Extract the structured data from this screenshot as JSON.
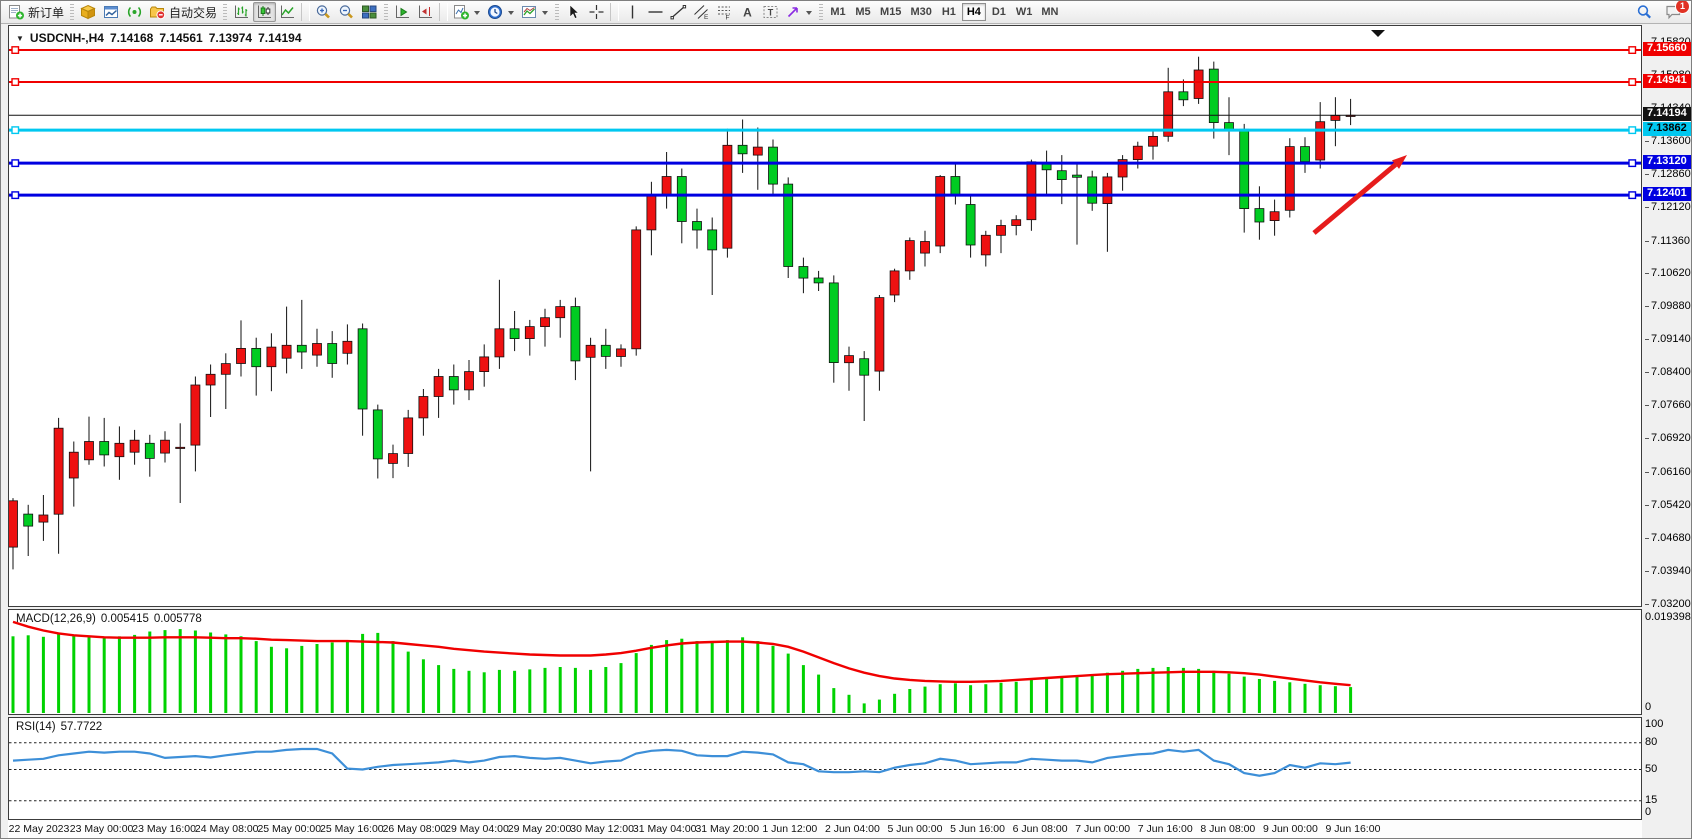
{
  "toolbar": {
    "new_order_label": "新订单",
    "auto_trading_label": "自动交易",
    "icons": [
      "new-order-icon",
      "market-watch-icon",
      "data-window-icon",
      "signals-icon",
      "auto-trading-icon",
      "bar-chart-icon",
      "candlestick-chart-icon",
      "line-chart-icon",
      "zoom-in-icon",
      "zoom-out-icon",
      "tile-windows-icon",
      "auto-scroll-icon",
      "chart-shift-icon",
      "indicators-icon",
      "periods-icon",
      "templates-icon",
      "cursor-icon",
      "crosshair-icon",
      "vertical-line-icon",
      "horizontal-line-icon",
      "trendline-icon",
      "channel-icon",
      "fibonacci-icon",
      "text-icon",
      "text-label-icon",
      "arrows-icon",
      "search-icon",
      "chat-icon"
    ],
    "timeframes": [
      "M1",
      "M5",
      "M15",
      "M30",
      "H1",
      "H4",
      "D1",
      "W1",
      "MN"
    ],
    "active_timeframe": "H4",
    "notification_count": "1"
  },
  "chart_header": {
    "symbol_period": "USDCNH-,H4",
    "open": "7.14168",
    "high": "7.14561",
    "low": "7.13974",
    "close": "7.14194"
  },
  "price_axis": {
    "ticks": [
      "7.15820",
      "7.15080",
      "7.14340",
      "7.13600",
      "7.12860",
      "7.12120",
      "7.11360",
      "7.10620",
      "7.09880",
      "7.09140",
      "7.08400",
      "7.07660",
      "7.06920",
      "7.06160",
      "7.05420",
      "7.04680",
      "7.03940",
      "7.03200"
    ]
  },
  "date_axis": {
    "labels": [
      "22 May 2023",
      "23 May 00:00",
      "23 May 16:00",
      "24 May 08:00",
      "25 May 00:00",
      "25 May 16:00",
      "26 May 08:00",
      "29 May 04:00",
      "29 May 20:00",
      "30 May 12:00",
      "31 May 04:00",
      "31 May 20:00",
      "1 Jun 12:00",
      "2 Jun 04:00",
      "5 Jun 00:00",
      "5 Jun 16:00",
      "6 Jun 08:00",
      "7 Jun 00:00",
      "7 Jun 16:00",
      "8 Jun 08:00",
      "9 Jun 00:00",
      "9 Jun 16:00"
    ]
  },
  "indicators": {
    "macd": {
      "label": "MACD(12,26,9)",
      "value_main": "0.005415",
      "value_signal": "0.005778",
      "scale_max": "0.019398",
      "scale_min": "0"
    },
    "rsi": {
      "label": "RSI(14)",
      "value": "57.7722",
      "scale_labels": [
        "100",
        "80",
        "50",
        "15",
        "0"
      ],
      "level_lines": [
        80,
        50,
        15
      ]
    }
  },
  "chart_data": {
    "type": "candlestick",
    "title": "USDCNH-,H4 7.14168 7.14561 7.13974 7.14194",
    "symbol": "USDCNH-",
    "period": "H4",
    "ylim": [
      7.0318,
      7.162
    ],
    "x_range": [
      "22 May 2023",
      "9 Jun 2023 20:00"
    ],
    "up_color": "#ee1111",
    "down_color": "#00cc22",
    "levels": [
      {
        "price": 7.1566,
        "label": "7.15660",
        "color": "#f00000",
        "width": 2,
        "handles": true,
        "text_color": "#fff"
      },
      {
        "price": 7.14941,
        "label": "7.14941",
        "color": "#f00000",
        "width": 2,
        "handles": true,
        "text_color": "#fff"
      },
      {
        "price": 7.14194,
        "label": "7.14194",
        "color": "#111111",
        "width": 1,
        "handles": false,
        "role": "current-price",
        "text_color": "#fff"
      },
      {
        "price": 7.13862,
        "label": "7.13862",
        "color": "#00c8f0",
        "width": 3,
        "handles": true,
        "text_color": "#000"
      },
      {
        "price": 7.1312,
        "label": "7.13120",
        "color": "#0000e0",
        "width": 3,
        "handles": true,
        "text_color": "#fff"
      },
      {
        "price": 7.12401,
        "label": "7.12401",
        "color": "#0000e0",
        "width": 3,
        "handles": true,
        "text_color": "#fff"
      }
    ],
    "annotations": [
      {
        "type": "arrow",
        "direction": "up-right",
        "color": "#e61c1c",
        "from": [
          1305,
          207
        ],
        "to": [
          1398,
          129
        ]
      }
    ],
    "candles": [
      [
        7.045,
        7.056,
        7.04,
        7.0554
      ],
      [
        7.0524,
        7.0545,
        7.043,
        7.0497
      ],
      [
        7.0506,
        7.0567,
        7.0464,
        7.0522
      ],
      [
        7.0524,
        7.074,
        7.0435,
        7.0717
      ],
      [
        7.0605,
        7.0687,
        7.0541,
        7.0663
      ],
      [
        7.0646,
        7.0743,
        7.0635,
        7.0687
      ],
      [
        7.0687,
        7.074,
        7.0631,
        7.0657
      ],
      [
        7.0653,
        7.0721,
        7.0601,
        7.0683
      ],
      [
        7.0663,
        7.0713,
        7.0635,
        7.069
      ],
      [
        7.0683,
        7.0702,
        7.0608,
        7.0649
      ],
      [
        7.0661,
        7.071,
        7.064,
        7.069
      ],
      [
        7.0673,
        7.0728,
        7.0549,
        7.0674
      ],
      [
        7.0679,
        7.0833,
        7.062,
        7.0814
      ],
      [
        7.0814,
        7.086,
        7.0742,
        7.0838
      ],
      [
        7.0838,
        7.0885,
        7.076,
        7.0862
      ],
      [
        7.0862,
        7.0959,
        7.0833,
        7.0896
      ],
      [
        7.0896,
        7.092,
        7.079,
        7.0855
      ],
      [
        7.0855,
        7.093,
        7.08,
        7.0899
      ],
      [
        7.0874,
        7.099,
        7.084,
        7.0903
      ],
      [
        7.0903,
        7.1005,
        7.085,
        7.0888
      ],
      [
        7.0881,
        7.094,
        7.0855,
        7.0907
      ],
      [
        7.0907,
        7.0935,
        7.083,
        7.0862
      ],
      [
        7.0885,
        7.095,
        7.086,
        7.0912
      ],
      [
        7.094,
        7.0952,
        7.07,
        7.076
      ],
      [
        7.0758,
        7.077,
        7.0604,
        7.0648
      ],
      [
        7.0638,
        7.068,
        7.0605,
        7.066
      ],
      [
        7.066,
        7.0758,
        7.063,
        7.074
      ],
      [
        7.074,
        7.0805,
        7.07,
        7.0788
      ],
      [
        7.0788,
        7.085,
        7.074,
        7.0833
      ],
      [
        7.0833,
        7.086,
        7.077,
        7.0803
      ],
      [
        7.0803,
        7.087,
        7.078,
        7.0844
      ],
      [
        7.0844,
        7.0905,
        7.081,
        7.0877
      ],
      [
        7.0877,
        7.105,
        7.085,
        7.094
      ],
      [
        7.094,
        7.098,
        7.089,
        7.0918
      ],
      [
        7.0918,
        7.096,
        7.088,
        7.0945
      ],
      [
        7.0945,
        7.0985,
        7.09,
        7.0965
      ],
      [
        7.0965,
        7.1005,
        7.092,
        7.099
      ],
      [
        7.099,
        7.101,
        7.0825,
        7.0868
      ],
      [
        7.0876,
        7.092,
        7.062,
        7.0903
      ],
      [
        7.0903,
        7.094,
        7.085,
        7.0878
      ],
      [
        7.0878,
        7.0905,
        7.0855,
        7.0895
      ],
      [
        7.0895,
        7.117,
        7.088,
        7.1162
      ],
      [
        7.1162,
        7.127,
        7.1105,
        7.124
      ],
      [
        7.124,
        7.1337,
        7.121,
        7.1282
      ],
      [
        7.1282,
        7.13,
        7.1132,
        7.1181
      ],
      [
        7.1181,
        7.121,
        7.112,
        7.1162
      ],
      [
        7.1162,
        7.119,
        7.1016,
        7.1117
      ],
      [
        7.1121,
        7.1389,
        7.11,
        7.1352
      ],
      [
        7.1352,
        7.141,
        7.129,
        7.1333
      ],
      [
        7.133,
        7.1392,
        7.1252,
        7.1348
      ],
      [
        7.1348,
        7.1365,
        7.124,
        7.1265
      ],
      [
        7.1265,
        7.128,
        7.1054,
        7.108
      ],
      [
        7.108,
        7.11,
        7.102,
        7.1054
      ],
      [
        7.1054,
        7.107,
        7.1025,
        7.1043
      ],
      [
        7.1043,
        7.106,
        7.0819,
        7.0864
      ],
      [
        7.0864,
        7.09,
        7.0801,
        7.088
      ],
      [
        7.0873,
        7.089,
        7.0733,
        7.0836
      ],
      [
        7.0845,
        7.1016,
        7.0801,
        7.101
      ],
      [
        7.1016,
        7.1075,
        7.1,
        7.107
      ],
      [
        7.107,
        7.1145,
        7.105,
        7.1138
      ],
      [
        7.111,
        7.116,
        7.108,
        7.1136
      ],
      [
        7.1126,
        7.1285,
        7.111,
        7.1282
      ],
      [
        7.1282,
        7.131,
        7.1219,
        7.124
      ],
      [
        7.1219,
        7.124,
        7.11,
        7.1128
      ],
      [
        7.1106,
        7.116,
        7.108,
        7.115
      ],
      [
        7.115,
        7.1185,
        7.111,
        7.1172
      ],
      [
        7.1172,
        7.1195,
        7.115,
        7.1185
      ],
      [
        7.1185,
        7.132,
        7.116,
        7.1315
      ],
      [
        7.1312,
        7.134,
        7.124,
        7.1297
      ],
      [
        7.1295,
        7.133,
        7.122,
        7.1275
      ],
      [
        7.1285,
        7.131,
        7.1129,
        7.128
      ],
      [
        7.1281,
        7.1295,
        7.1205,
        7.1222
      ],
      [
        7.1221,
        7.129,
        7.1113,
        7.1281
      ],
      [
        7.1281,
        7.133,
        7.125,
        7.132
      ],
      [
        7.132,
        7.136,
        7.13,
        7.135
      ],
      [
        7.135,
        7.1385,
        7.132,
        7.1372
      ],
      [
        7.1372,
        7.1526,
        7.136,
        7.1472
      ],
      [
        7.1472,
        7.15,
        7.144,
        7.1454
      ],
      [
        7.1457,
        7.1551,
        7.1445,
        7.1521
      ],
      [
        7.1523,
        7.154,
        7.1367,
        7.1403
      ],
      [
        7.1403,
        7.146,
        7.133,
        7.1385
      ],
      [
        7.1388,
        7.14,
        7.1156,
        7.121
      ],
      [
        7.121,
        7.126,
        7.114,
        7.118
      ],
      [
        7.1183,
        7.123,
        7.1149,
        7.1203
      ],
      [
        7.1206,
        7.1368,
        7.119,
        7.1349
      ],
      [
        7.1349,
        7.137,
        7.129,
        7.1315
      ],
      [
        7.1319,
        7.1449,
        7.13,
        7.1405
      ],
      [
        7.1408,
        7.146,
        7.135,
        7.1419
      ],
      [
        7.14168,
        7.14561,
        7.13974,
        7.14194
      ]
    ],
    "macd": {
      "histogram_color": "#00d200",
      "signal_color": "#f00000",
      "histogram": [
        0.016,
        0.0162,
        0.0159,
        0.0165,
        0.0162,
        0.0158,
        0.0157,
        0.016,
        0.0163,
        0.017,
        0.0173,
        0.0175,
        0.0172,
        0.0168,
        0.0164,
        0.016,
        0.015,
        0.0138,
        0.0135,
        0.014,
        0.0144,
        0.0147,
        0.015,
        0.0165,
        0.0167,
        0.015,
        0.0128,
        0.0112,
        0.01,
        0.0092,
        0.0088,
        0.0085,
        0.009,
        0.0088,
        0.0091,
        0.0094,
        0.0096,
        0.0094,
        0.009,
        0.0096,
        0.0104,
        0.0125,
        0.0142,
        0.0152,
        0.0155,
        0.015,
        0.0148,
        0.0152,
        0.0158,
        0.015,
        0.014,
        0.0124,
        0.01,
        0.008,
        0.0052,
        0.0038,
        0.002,
        0.0028,
        0.004,
        0.005,
        0.0055,
        0.006,
        0.0062,
        0.0058,
        0.006,
        0.0063,
        0.0065,
        0.007,
        0.0072,
        0.0074,
        0.0077,
        0.008,
        0.0084,
        0.0088,
        0.0092,
        0.0094,
        0.0096,
        0.0094,
        0.0092,
        0.0088,
        0.0082,
        0.0076,
        0.0071,
        0.0067,
        0.0064,
        0.0061,
        0.0058,
        0.0056,
        0.0054
      ],
      "signal": [
        0.019,
        0.018,
        0.0172,
        0.0166,
        0.0162,
        0.016,
        0.0158,
        0.0157,
        0.0157,
        0.0157,
        0.0158,
        0.0158,
        0.0158,
        0.0157,
        0.0156,
        0.0156,
        0.0155,
        0.0153,
        0.0152,
        0.0151,
        0.015,
        0.015,
        0.015,
        0.0149,
        0.0148,
        0.0147,
        0.0144,
        0.0141,
        0.0138,
        0.0134,
        0.0131,
        0.0128,
        0.0126,
        0.0124,
        0.0122,
        0.0121,
        0.012,
        0.012,
        0.012,
        0.0122,
        0.0125,
        0.013,
        0.0136,
        0.0141,
        0.0145,
        0.0147,
        0.0148,
        0.0149,
        0.0149,
        0.0147,
        0.0144,
        0.0138,
        0.0128,
        0.0116,
        0.0104,
        0.0093,
        0.0084,
        0.0077,
        0.0072,
        0.0069,
        0.0067,
        0.0066,
        0.0065,
        0.0065,
        0.0066,
        0.0067,
        0.0069,
        0.0071,
        0.0073,
        0.0075,
        0.0077,
        0.0079,
        0.0081,
        0.0082,
        0.0083,
        0.0084,
        0.0085,
        0.0086,
        0.0086,
        0.0086,
        0.0085,
        0.0083,
        0.008,
        0.0076,
        0.0072,
        0.0068,
        0.0064,
        0.0061,
        0.0058
      ]
    },
    "rsi": {
      "color": "#3d8fd8",
      "values": [
        60,
        61,
        62,
        66,
        68,
        70,
        69,
        70,
        70,
        68,
        63,
        64,
        65,
        63.5,
        66,
        68,
        70,
        70,
        72,
        73,
        73,
        68,
        51,
        50,
        53,
        55,
        56,
        57,
        58,
        60,
        58,
        60,
        64,
        65,
        63,
        62,
        63,
        60,
        57,
        59,
        60,
        68,
        71,
        72,
        71,
        66,
        65,
        65,
        70,
        69,
        67,
        58,
        56,
        48,
        47,
        47,
        48,
        47,
        52,
        55,
        57,
        62,
        60,
        56,
        57,
        58,
        58,
        62,
        61,
        60,
        60,
        58,
        63,
        65,
        67,
        68,
        72,
        70,
        72,
        60,
        56,
        46,
        43,
        46,
        55,
        52,
        57,
        56,
        57.77
      ]
    }
  }
}
